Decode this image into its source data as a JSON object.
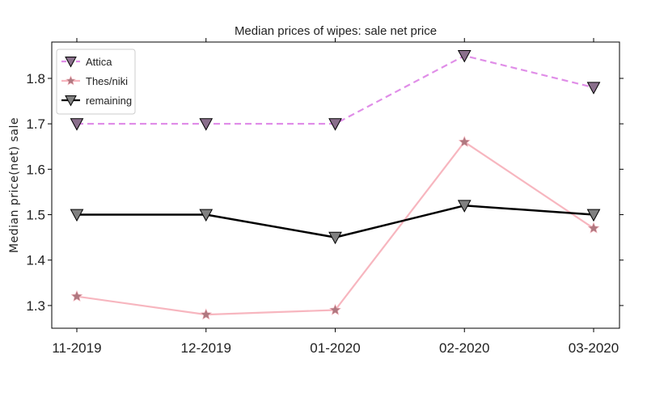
{
  "chart_data": {
    "type": "line",
    "title": "Median prices of wipes: sale net price",
    "xlabel": "",
    "ylabel": "Median price(net) sale",
    "categories": [
      "11-2019",
      "12-2019",
      "01-2020",
      "02-2020",
      "03-2020"
    ],
    "ylim": [
      1.25,
      1.88
    ],
    "yticks": [
      1.3,
      1.4,
      1.5,
      1.6,
      1.7,
      1.8
    ],
    "grid": false,
    "legend_position": "top-left",
    "series": [
      {
        "name": "Attica",
        "values": [
          1.7,
          1.7,
          1.7,
          1.85,
          1.78
        ],
        "color": "#e08ee8",
        "line_style": "dashed",
        "marker": "triangle-down",
        "marker_color": "#8a6f8c"
      },
      {
        "name": "Thes/niki",
        "values": [
          1.32,
          1.28,
          1.29,
          1.66,
          1.47
        ],
        "color": "#f7b6bf",
        "line_style": "solid",
        "marker": "star",
        "marker_color": "#b07880"
      },
      {
        "name": "remaining",
        "values": [
          1.5,
          1.5,
          1.45,
          1.52,
          1.5
        ],
        "color": "#000000",
        "line_style": "solid",
        "marker": "triangle-down",
        "marker_color": "#808080"
      }
    ]
  }
}
